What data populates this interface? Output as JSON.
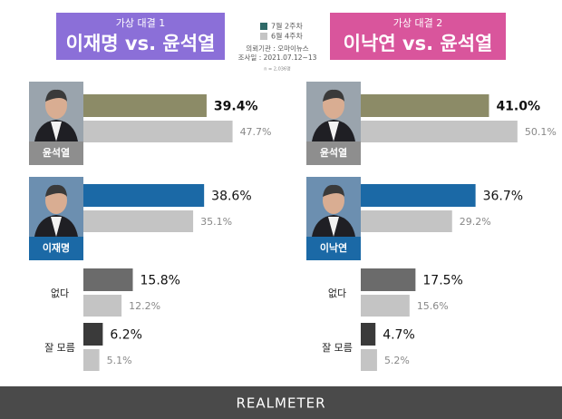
{
  "chart_data": [
    {
      "type": "bar",
      "subtitle": "가상 대결 1",
      "title": "이재명 vs. 윤석열",
      "categories": [
        "윤석열",
        "이재명",
        "없다",
        "잘 모름"
      ],
      "series": [
        {
          "name": "7월 2주차",
          "color": "#2f6a68",
          "colors": [
            "#8c8b67",
            "#1b69a6",
            "#6b6b6b",
            "#3a3a3a"
          ],
          "values": [
            39.4,
            38.6,
            15.8,
            6.2
          ],
          "value_labels": [
            "39.4%",
            "38.6%",
            "15.8%",
            "6.2%"
          ]
        },
        {
          "name": "6월 4주차",
          "color": "#c4c4c4",
          "values": [
            47.7,
            35.1,
            12.2,
            5.1
          ],
          "value_labels": [
            "47.7%",
            "35.1%",
            "12.2%",
            "5.1%"
          ]
        }
      ]
    },
    {
      "type": "bar",
      "subtitle": "가상 대결 2",
      "title": "이낙연 vs. 윤석열",
      "categories": [
        "윤석열",
        "이낙연",
        "없다",
        "잘 모름"
      ],
      "series": [
        {
          "colors": [
            "#8c8b67",
            "#1b69a6",
            "#6b6b6b",
            "#3a3a3a"
          ],
          "values": [
            41.0,
            36.7,
            17.5,
            4.7
          ],
          "value_labels": [
            "41.0%",
            "36.7%",
            "17.5%",
            "4.7%"
          ]
        },
        {
          "color": "#c4c4c4",
          "values": [
            50.1,
            29.2,
            15.6,
            5.2
          ],
          "value_labels": [
            "50.1%",
            "29.2%",
            "15.6%",
            "5.2%"
          ]
        }
      ]
    }
  ],
  "source": [
    "의뢰기관 : 오마이뉴스",
    "조사일 : 2021.07.12~13"
  ],
  "sample": "n = 2,036명",
  "footer": "REALMETER"
}
